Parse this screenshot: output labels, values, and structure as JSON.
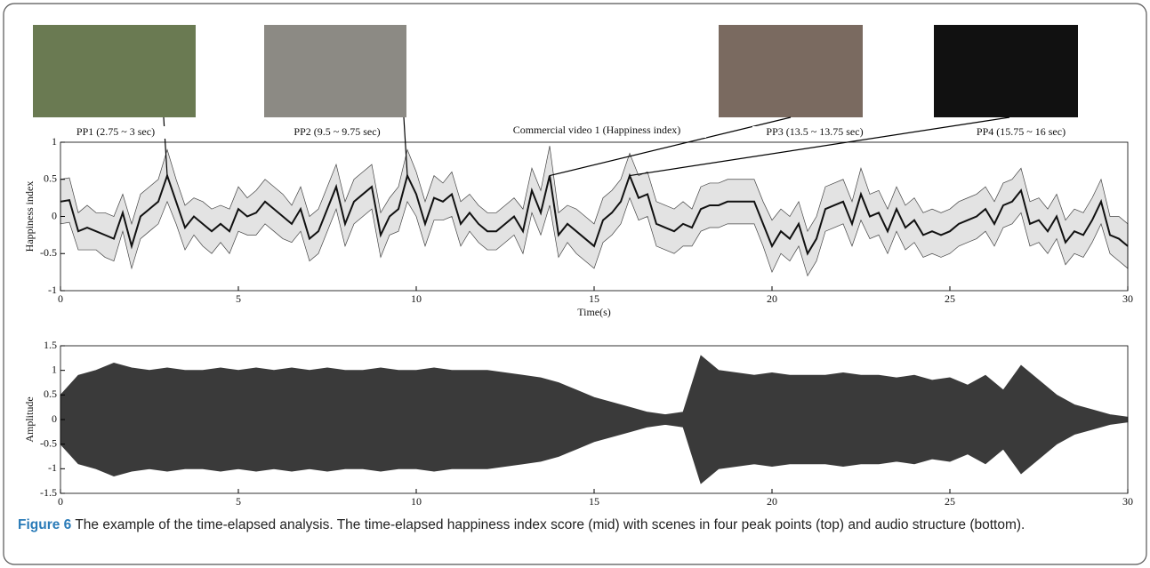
{
  "chart_data": [
    {
      "type": "band-line",
      "title": "Commercial video 1 (Happiness index)",
      "y_label": "Happiness index",
      "x_label": "Time(s)",
      "xlim": [
        0,
        30
      ],
      "xticks": [
        0,
        5,
        10,
        15,
        20,
        25,
        30
      ],
      "ylim": [
        -1,
        1
      ],
      "yticks": [
        -1,
        -0.5,
        0,
        0.5,
        1
      ],
      "color": "#111111",
      "band_color": "#e3e3e3",
      "x": [
        0,
        0.25,
        0.5,
        0.75,
        1,
        1.25,
        1.5,
        1.75,
        2,
        2.25,
        2.5,
        2.75,
        3,
        3.25,
        3.5,
        3.75,
        4,
        4.25,
        4.5,
        4.75,
        5,
        5.25,
        5.5,
        5.75,
        6,
        6.25,
        6.5,
        6.75,
        7,
        7.25,
        7.5,
        7.75,
        8,
        8.25,
        8.5,
        8.75,
        9,
        9.25,
        9.5,
        9.75,
        10,
        10.25,
        10.5,
        10.75,
        11,
        11.25,
        11.5,
        11.75,
        12,
        12.25,
        12.5,
        12.75,
        13,
        13.25,
        13.5,
        13.75,
        14,
        14.25,
        14.5,
        14.75,
        15,
        15.25,
        15.5,
        15.75,
        16,
        16.25,
        16.5,
        16.75,
        17,
        17.25,
        17.5,
        17.75,
        18,
        18.25,
        18.5,
        18.75,
        19,
        19.25,
        19.5,
        19.75,
        20,
        20.25,
        20.5,
        20.75,
        21,
        21.25,
        21.5,
        21.75,
        22,
        22.25,
        22.5,
        22.75,
        23,
        23.25,
        23.5,
        23.75,
        24,
        24.25,
        24.5,
        24.75,
        25,
        25.25,
        25.5,
        25.75,
        26,
        26.25,
        26.5,
        26.75,
        27,
        27.25,
        27.5,
        27.75,
        28,
        28.25,
        28.5,
        28.75,
        29,
        29.25,
        29.5,
        29.75,
        30
      ],
      "values": [
        0.2,
        0.22,
        -0.2,
        -0.15,
        -0.2,
        -0.25,
        -0.3,
        0.05,
        -0.4,
        0,
        0.1,
        0.2,
        0.55,
        0.2,
        -0.15,
        0,
        -0.1,
        -0.2,
        -0.1,
        -0.2,
        0.1,
        0,
        0.05,
        0.2,
        0.1,
        0,
        -0.1,
        0.1,
        -0.3,
        -0.2,
        0.1,
        0.4,
        -0.1,
        0.2,
        0.3,
        0.4,
        -0.25,
        0,
        0.1,
        0.55,
        0.3,
        -0.1,
        0.25,
        0.2,
        0.3,
        -0.1,
        0.05,
        -0.1,
        -0.2,
        -0.2,
        -0.1,
        0,
        -0.2,
        0.35,
        0.05,
        0.55,
        -0.25,
        -0.1,
        -0.2,
        -0.3,
        -0.4,
        -0.05,
        0.05,
        0.2,
        0.55,
        0.25,
        0.3,
        -0.1,
        -0.15,
        -0.2,
        -0.1,
        -0.15,
        0.1,
        0.15,
        0.15,
        0.2,
        0.2,
        0.2,
        0.2,
        -0.1,
        -0.4,
        -0.2,
        -0.3,
        -0.1,
        -0.5,
        -0.3,
        0.1,
        0.15,
        0.2,
        -0.1,
        0.3,
        0,
        0.05,
        -0.2,
        0.1,
        -0.15,
        -0.05,
        -0.25,
        -0.2,
        -0.25,
        -0.2,
        -0.1,
        -0.05,
        0,
        0.1,
        -0.1,
        0.15,
        0.2,
        0.35,
        -0.1,
        -0.05,
        -0.2,
        0,
        -0.35,
        -0.2,
        -0.25,
        -0.05,
        0.2,
        -0.25,
        -0.3,
        -0.4
      ],
      "errors": [
        0.3,
        0.3,
        0.25,
        0.3,
        0.25,
        0.3,
        0.3,
        0.25,
        0.3,
        0.3,
        0.3,
        0.3,
        0.35,
        0.3,
        0.3,
        0.25,
        0.3,
        0.3,
        0.25,
        0.3,
        0.3,
        0.25,
        0.3,
        0.3,
        0.3,
        0.3,
        0.25,
        0.3,
        0.3,
        0.3,
        0.3,
        0.3,
        0.3,
        0.3,
        0.3,
        0.3,
        0.3,
        0.25,
        0.3,
        0.35,
        0.3,
        0.3,
        0.3,
        0.25,
        0.3,
        0.3,
        0.25,
        0.25,
        0.25,
        0.25,
        0.25,
        0.25,
        0.3,
        0.3,
        0.3,
        0.4,
        0.3,
        0.25,
        0.3,
        0.3,
        0.3,
        0.3,
        0.3,
        0.3,
        0.3,
        0.3,
        0.3,
        0.3,
        0.3,
        0.3,
        0.3,
        0.25,
        0.3,
        0.3,
        0.3,
        0.3,
        0.3,
        0.3,
        0.3,
        0.3,
        0.35,
        0.3,
        0.3,
        0.3,
        0.3,
        0.3,
        0.3,
        0.3,
        0.3,
        0.3,
        0.35,
        0.3,
        0.3,
        0.3,
        0.3,
        0.3,
        0.3,
        0.3,
        0.3,
        0.3,
        0.3,
        0.3,
        0.3,
        0.3,
        0.3,
        0.3,
        0.3,
        0.3,
        0.3,
        0.3,
        0.3,
        0.3,
        0.3,
        0.3,
        0.3,
        0.3,
        0.3,
        0.3,
        0.25,
        0.3,
        0.3
      ],
      "annotations": [
        {
          "text": "PP1 (2.75 ~ 3 sec)",
          "x": 3,
          "y": 0.55
        },
        {
          "text": "PP2 (9.5 ~ 9.75 sec)",
          "x": 9.75,
          "y": 0.55
        },
        {
          "text": "PP3 (13.5 ~ 13.75 sec)",
          "x": 13.75,
          "y": 0.55
        },
        {
          "text": "PP4 (15.75 ~ 16 sec)",
          "x": 16,
          "y": 0.55
        }
      ]
    },
    {
      "type": "waveform",
      "y_label": "Amplitude",
      "xlim": [
        0,
        30
      ],
      "xticks": [
        0,
        5,
        10,
        15,
        20,
        25,
        30
      ],
      "ylim": [
        -1.5,
        1.5
      ],
      "yticks": [
        -1.5,
        -1,
        -0.5,
        0,
        0.5,
        1,
        1.5
      ],
      "color": "#3a3a3a",
      "x": [
        0,
        0.5,
        1,
        1.5,
        2,
        2.5,
        3,
        3.5,
        4,
        4.5,
        5,
        5.5,
        6,
        6.5,
        7,
        7.5,
        8,
        8.5,
        9,
        9.5,
        10,
        10.5,
        11,
        11.5,
        12,
        12.5,
        13,
        13.5,
        14,
        14.5,
        15,
        15.5,
        16,
        16.5,
        17,
        17.5,
        18,
        18.5,
        19,
        19.5,
        20,
        20.5,
        21,
        21.5,
        22,
        22.5,
        23,
        23.5,
        24,
        24.5,
        25,
        25.5,
        26,
        26.5,
        27,
        27.5,
        28,
        28.5,
        29,
        29.5,
        30
      ],
      "values": [
        0.5,
        0.9,
        1.0,
        1.15,
        1.05,
        1.0,
        1.05,
        1.0,
        1.0,
        1.05,
        1.0,
        1.05,
        1.0,
        1.05,
        1.0,
        1.05,
        1.0,
        1.0,
        1.05,
        1.0,
        1.0,
        1.05,
        1.0,
        1.0,
        1.0,
        0.95,
        0.9,
        0.85,
        0.75,
        0.6,
        0.45,
        0.35,
        0.25,
        0.15,
        0.1,
        0.15,
        1.3,
        1.0,
        0.95,
        0.9,
        0.95,
        0.9,
        0.9,
        0.9,
        0.95,
        0.9,
        0.9,
        0.85,
        0.9,
        0.8,
        0.85,
        0.7,
        0.9,
        0.6,
        1.1,
        0.8,
        0.5,
        0.3,
        0.2,
        0.1,
        0.05
      ]
    }
  ],
  "caption": {
    "label": "Figure 6",
    "text": "The example of the time-elapsed analysis. The time-elapsed happiness index score (mid) with scenes in four peak points (top) and audio structure (bottom)."
  }
}
